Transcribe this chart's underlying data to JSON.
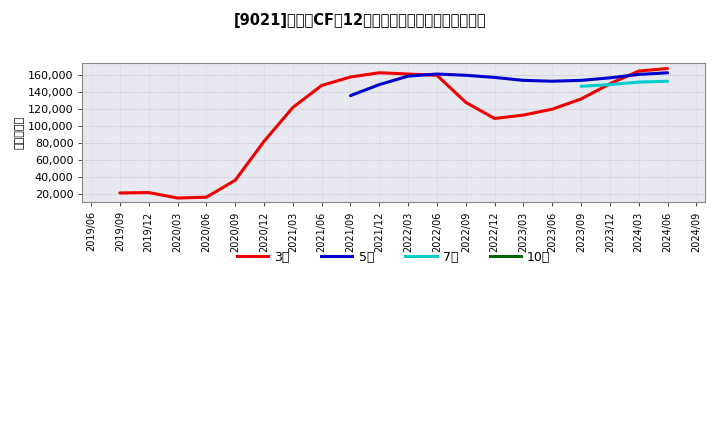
{
  "title": "[9021]　営業CFだ12か月移動合計の標準偏差の推移",
  "ylabel": "（百万円）",
  "background_color": "#ffffff",
  "plot_background": "#e8e8f0",
  "grid_color": "#aaaaaa",
  "ylim": [
    10000,
    175000
  ],
  "yticks": [
    20000,
    40000,
    60000,
    80000,
    100000,
    120000,
    140000,
    160000
  ],
  "series": {
    "3年": {
      "color": "#ee0000",
      "x": [
        "2019/09",
        "2019/12",
        "2020/03",
        "2020/06",
        "2020/09",
        "2020/12",
        "2021/03",
        "2021/06",
        "2021/09",
        "2021/12",
        "2022/03",
        "2022/06",
        "2022/09",
        "2022/12",
        "2023/03",
        "2023/06",
        "2023/09",
        "2023/12",
        "2024/03",
        "2024/06"
      ],
      "y": [
        21000,
        21500,
        15000,
        16000,
        36000,
        82000,
        122000,
        148000,
        158000,
        163000,
        161500,
        160000,
        128000,
        109000,
        113000,
        120000,
        132000,
        150000,
        165000,
        168000
      ]
    },
    "5年": {
      "color": "#0000cc",
      "x": [
        "2021/09",
        "2021/12",
        "2022/03",
        "2022/06",
        "2022/09",
        "2022/12",
        "2023/03",
        "2023/06",
        "2023/09",
        "2023/12",
        "2024/03",
        "2024/06"
      ],
      "y": [
        136000,
        149000,
        159000,
        161500,
        160000,
        157500,
        154000,
        153000,
        154000,
        157000,
        161000,
        163000
      ]
    },
    "7年": {
      "color": "#00cccc",
      "x": [
        "2023/09",
        "2023/12",
        "2024/03",
        "2024/06"
      ],
      "y": [
        147000,
        149000,
        152000,
        153000
      ]
    },
    "10年": {
      "color": "#006400",
      "x": [],
      "y": []
    }
  },
  "xticks": [
    "2019/06",
    "2019/09",
    "2019/12",
    "2020/03",
    "2020/06",
    "2020/09",
    "2020/12",
    "2021/03",
    "2021/06",
    "2021/09",
    "2021/12",
    "2022/03",
    "2022/06",
    "2022/09",
    "2022/12",
    "2023/03",
    "2023/06",
    "2023/09",
    "2023/12",
    "2024/03",
    "2024/06",
    "2024/09"
  ],
  "legend_labels": [
    "3年",
    "5年",
    "7年",
    "10年"
  ],
  "legend_colors": [
    "#ee0000",
    "#0000cc",
    "#00cccc",
    "#006400"
  ]
}
